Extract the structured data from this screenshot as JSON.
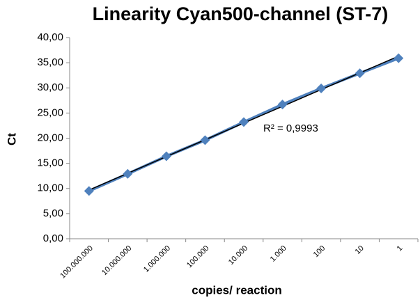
{
  "chart_data": {
    "type": "line",
    "title": "Linearity Cyan500-channel (ST-7)",
    "x_label": "copies/ reaction",
    "y_label": "Ct",
    "annotation": "R² = 0,9993",
    "categories": [
      "100.000.000",
      "10.000.000",
      "1.000.000",
      "100.000",
      "10.000",
      "1.000",
      "100",
      "10",
      "1"
    ],
    "series": [
      {
        "name": "Ct",
        "color": "#4f81bd",
        "values": [
          9.5,
          12.9,
          16.4,
          19.6,
          23.2,
          26.7,
          29.9,
          32.9,
          35.9
        ]
      }
    ],
    "trendline_color": "#000000",
    "ylim": [
      0,
      40
    ],
    "yticks": [
      {
        "value": 0,
        "label": "0,00"
      },
      {
        "value": 5,
        "label": "5,00"
      },
      {
        "value": 10,
        "label": "10,00"
      },
      {
        "value": 15,
        "label": "15,00"
      },
      {
        "value": 20,
        "label": "20,00"
      },
      {
        "value": 25,
        "label": "25,00"
      },
      {
        "value": 30,
        "label": "30,00"
      },
      {
        "value": 35,
        "label": "35,00"
      },
      {
        "value": 40,
        "label": "40,00"
      }
    ],
    "grid": false
  }
}
